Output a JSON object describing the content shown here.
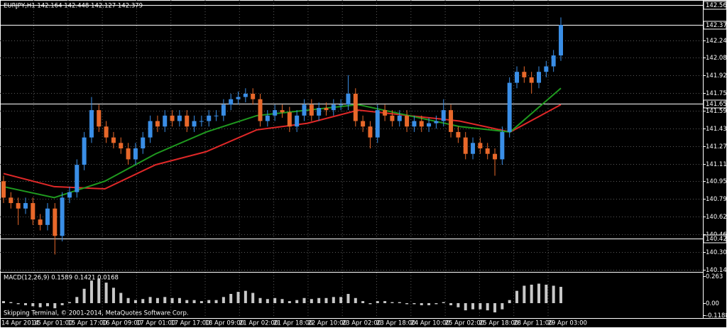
{
  "chart_data": [
    {
      "type": "candlestick",
      "title": "EURJPY,H1  142.164 142.448 142.127 142.379",
      "open": [
        140.95,
        140.8,
        140.75,
        140.7,
        140.75,
        140.6,
        140.55,
        140.7,
        140.45,
        140.8,
        140.85,
        141.1,
        141.35,
        141.6,
        141.45,
        141.35,
        141.3,
        141.25,
        141.15,
        141.25,
        141.35,
        141.5,
        141.45,
        141.55,
        141.5,
        141.55,
        141.45,
        141.5,
        141.5,
        141.55,
        141.55,
        141.65,
        141.7,
        141.72,
        141.75,
        141.7,
        141.5,
        141.55,
        141.6,
        141.58,
        141.45,
        141.55,
        141.65,
        141.55,
        141.62,
        141.6,
        141.65,
        141.65,
        141.75,
        141.5,
        141.45,
        141.35,
        141.6,
        141.55,
        141.5,
        141.55,
        141.45,
        141.5,
        141.45,
        141.48,
        141.5,
        141.6,
        141.4,
        141.35,
        141.2,
        141.3,
        141.25,
        141.2,
        141.15,
        141.4,
        141.85,
        141.95,
        141.9,
        141.85,
        141.95,
        142.0,
        142.1
      ],
      "high": [
        141.0,
        140.85,
        140.8,
        140.8,
        140.8,
        140.65,
        140.75,
        140.75,
        140.85,
        140.9,
        141.15,
        141.4,
        141.72,
        141.65,
        141.5,
        141.4,
        141.35,
        141.3,
        141.3,
        141.4,
        141.55,
        141.55,
        141.6,
        141.6,
        141.6,
        141.6,
        141.55,
        141.55,
        141.6,
        141.6,
        141.7,
        141.75,
        141.77,
        141.8,
        141.8,
        141.75,
        141.6,
        141.65,
        141.65,
        141.63,
        141.6,
        141.7,
        141.7,
        141.67,
        141.67,
        141.7,
        141.7,
        141.92,
        141.8,
        141.55,
        141.5,
        141.65,
        141.65,
        141.6,
        141.6,
        141.6,
        141.55,
        141.55,
        141.53,
        141.55,
        141.7,
        141.65,
        141.45,
        141.4,
        141.35,
        141.35,
        141.3,
        141.25,
        141.45,
        141.9,
        142.0,
        142.0,
        141.95,
        142.0,
        142.05,
        142.15,
        142.448
      ],
      "low": [
        140.75,
        140.7,
        140.55,
        140.65,
        140.55,
        140.5,
        140.5,
        140.28,
        140.4,
        140.75,
        140.8,
        141.05,
        141.3,
        141.4,
        141.3,
        141.25,
        141.2,
        141.1,
        141.1,
        141.2,
        141.3,
        141.4,
        141.4,
        141.45,
        141.45,
        141.4,
        141.4,
        141.45,
        141.45,
        141.5,
        141.5,
        141.6,
        141.65,
        141.67,
        141.65,
        141.45,
        141.45,
        141.5,
        141.53,
        141.4,
        141.4,
        141.5,
        141.5,
        141.5,
        141.55,
        141.55,
        141.6,
        141.6,
        141.45,
        141.4,
        141.25,
        141.3,
        141.5,
        141.45,
        141.45,
        141.4,
        141.4,
        141.4,
        141.4,
        141.43,
        141.45,
        141.35,
        141.3,
        141.15,
        141.15,
        141.2,
        141.15,
        141.0,
        141.1,
        141.35,
        141.8,
        141.85,
        141.75,
        141.8,
        141.9,
        141.95,
        142.05
      ],
      "close": [
        140.8,
        140.75,
        140.7,
        140.75,
        140.6,
        140.55,
        140.7,
        140.45,
        140.8,
        140.85,
        141.1,
        141.35,
        141.6,
        141.45,
        141.35,
        141.3,
        141.25,
        141.15,
        141.25,
        141.35,
        141.5,
        141.45,
        141.55,
        141.5,
        141.55,
        141.45,
        141.5,
        141.5,
        141.55,
        141.55,
        141.65,
        141.7,
        141.72,
        141.75,
        141.7,
        141.5,
        141.55,
        141.6,
        141.58,
        141.45,
        141.55,
        141.65,
        141.55,
        141.62,
        141.6,
        141.65,
        141.65,
        141.75,
        141.5,
        141.45,
        141.35,
        141.6,
        141.55,
        141.5,
        141.55,
        141.45,
        141.5,
        141.45,
        141.48,
        141.5,
        141.6,
        141.4,
        141.35,
        141.2,
        141.3,
        141.25,
        141.2,
        141.15,
        141.4,
        141.85,
        141.95,
        141.9,
        141.85,
        141.95,
        142.0,
        142.1,
        142.379
      ],
      "up_color": "#3a8ee6",
      "down_color": "#e8682a",
      "overlays": [
        {
          "color": "#e02828",
          "values": [
            141.02,
            140.9,
            140.88,
            141.1,
            141.22,
            141.42,
            141.48,
            141.6,
            141.55,
            141.5,
            141.4,
            141.65
          ]
        },
        {
          "color": "#1f9a1f",
          "values": [
            140.9,
            140.8,
            140.95,
            141.2,
            141.4,
            141.55,
            141.6,
            141.65,
            141.55,
            141.45,
            141.4,
            141.8
          ]
        }
      ],
      "ylim": [
        140.127,
        142.607
      ],
      "yticks": [
        {
          "value": 142.24,
          "label": "142.240"
        },
        {
          "value": 142.08,
          "label": "142.080"
        },
        {
          "value": 141.92,
          "label": "141.920"
        },
        141.755,
        141.595,
        141.435,
        {
          "value": 141.27,
          "label": "141.270"
        },
        {
          "value": 141.11,
          "label": "141.110"
        },
        {
          "value": 140.95,
          "label": "140.950"
        },
        {
          "value": 140.79,
          "label": "140.790"
        },
        140.625,
        140.465,
        140.305,
        {
          "value": 140.14,
          "label": "140.140"
        }
      ],
      "hlines": [
        142.562,
        142.379,
        141.658,
        140.424
      ],
      "grid": true,
      "xtick_labels": [
        "14 Apr 2014",
        "15 Apr 01:00",
        "15 Apr 17:00",
        "16 Apr 09:00",
        "17 Apr 01:00",
        "17 Apr 17:00",
        "18 Apr 09:00",
        "21 Apr 02:00",
        "21 Apr 18:00",
        "22 Apr 10:00",
        "23 Apr 02:00",
        "23 Apr 18:00",
        "24 Apr 10:00",
        "25 Apr 02:00",
        "25 Apr 18:00",
        "28 Apr 11:00",
        "29 Apr 03:00"
      ]
    },
    {
      "type": "bar",
      "title": "MACD(12,26,9) 0.1589 0.1421 0.0168",
      "color": "#c8c8c8",
      "values": [
        0.02,
        0.01,
        -0.01,
        -0.02,
        -0.03,
        -0.04,
        -0.03,
        -0.05,
        -0.02,
        0.01,
        0.06,
        0.14,
        0.22,
        0.24,
        0.2,
        0.15,
        0.1,
        0.05,
        0.03,
        0.04,
        0.06,
        0.05,
        0.06,
        0.05,
        0.05,
        0.03,
        0.03,
        0.02,
        0.03,
        0.03,
        0.06,
        0.09,
        0.11,
        0.12,
        0.1,
        0.05,
        0.04,
        0.05,
        0.04,
        0.02,
        0.03,
        0.05,
        0.04,
        0.05,
        0.05,
        0.06,
        0.06,
        0.09,
        0.05,
        0.02,
        -0.01,
        0.02,
        0.02,
        0.01,
        0.01,
        -0.01,
        -0.01,
        -0.02,
        -0.02,
        -0.01,
        0.01,
        -0.02,
        -0.04,
        -0.07,
        -0.06,
        -0.06,
        -0.07,
        -0.09,
        -0.06,
        0.03,
        0.12,
        0.17,
        0.18,
        0.19,
        0.18,
        0.17,
        0.1589
      ],
      "ylim": [
        -0.1315,
        0.2976
      ],
      "yticks": [
        0.263,
        {
          "value": 0,
          "label": "0.00"
        },
        -0.1188
      ]
    }
  ],
  "copyright": "Skipping Terminal, © 2001-2014, MetaQuotes Software Corp."
}
